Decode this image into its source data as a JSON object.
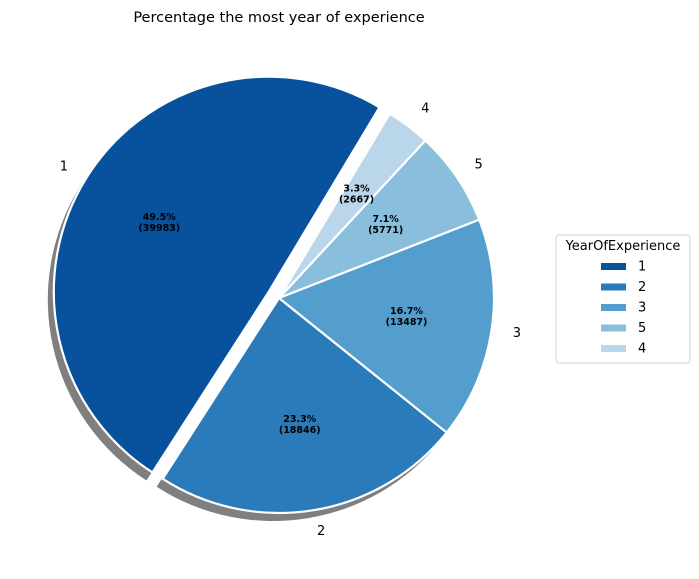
{
  "chart_data": {
    "type": "pie",
    "title": "Percentage the most year of experience",
    "legend_title": "YearOfExperience",
    "legend_position": "center-right",
    "slices": [
      {
        "label": "1",
        "value": 39983,
        "percent": "49.5%",
        "count_text": "(39983)",
        "color": "#08519c",
        "exploded": true
      },
      {
        "label": "2",
        "value": 18846,
        "percent": "23.3%",
        "count_text": "(18846)",
        "color": "#2b7bba"
      },
      {
        "label": "3",
        "value": 13487,
        "percent": "16.7%",
        "count_text": "(13487)",
        "color": "#539ecd"
      },
      {
        "label": "5",
        "value": 5771,
        "percent": "7.1%",
        "count_text": "(5771)",
        "color": "#89bedc"
      },
      {
        "label": "4",
        "value": 2667,
        "percent": "3.3%",
        "count_text": "(2667)",
        "color": "#bad6eb"
      }
    ],
    "shadow": true
  }
}
